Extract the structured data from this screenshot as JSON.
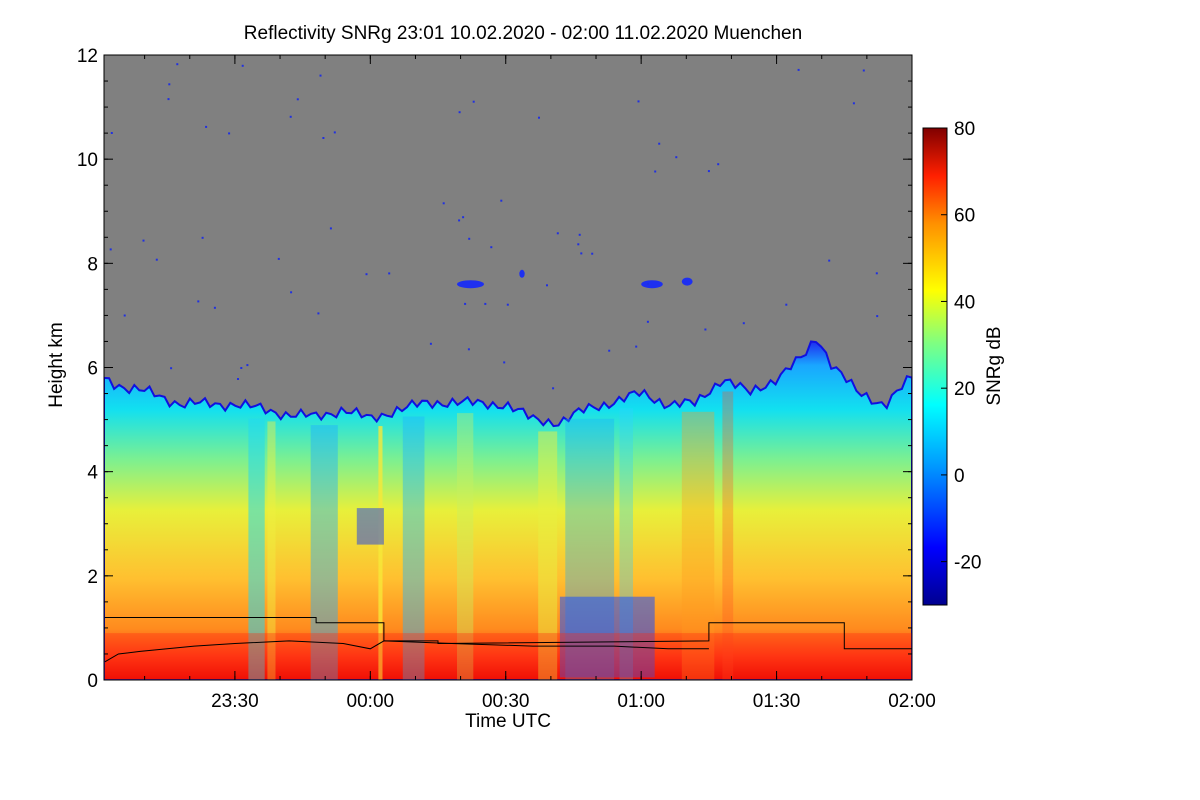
{
  "chart_data": {
    "type": "heatmap",
    "title": "Reflectivity SNRg   23:01 10.02.2020 - 02:00 11.02.2020 Muenchen",
    "xlabel": "Time UTC",
    "ylabel": "Height km",
    "x_ticks": [
      "23:30",
      "00:00",
      "00:30",
      "01:00",
      "01:30",
      "02:00"
    ],
    "y_ticks": [
      "0",
      "2",
      "4",
      "6",
      "8",
      "10",
      "12"
    ],
    "xlim_hours": [
      23.0167,
      26.0
    ],
    "ylim": [
      0,
      12
    ],
    "missing_color": "#808080",
    "colorbar": {
      "label": "SNRg dB",
      "range": [
        -30,
        80
      ],
      "ticks": [
        "-20",
        "0",
        "20",
        "40",
        "60",
        "80"
      ]
    },
    "echo_top_km": [
      [
        23.02,
        5.8
      ],
      [
        23.1,
        5.6
      ],
      [
        23.2,
        5.5
      ],
      [
        23.3,
        5.3
      ],
      [
        23.4,
        5.3
      ],
      [
        23.5,
        5.3
      ],
      [
        23.6,
        5.2
      ],
      [
        23.7,
        5.1
      ],
      [
        23.8,
        5.05
      ],
      [
        23.9,
        5.2
      ],
      [
        24.0,
        5.0
      ],
      [
        24.1,
        5.2
      ],
      [
        24.2,
        5.3
      ],
      [
        24.3,
        5.35
      ],
      [
        24.4,
        5.3
      ],
      [
        24.5,
        5.3
      ],
      [
        24.6,
        5.0
      ],
      [
        24.7,
        4.95
      ],
      [
        24.8,
        5.2
      ],
      [
        24.9,
        5.35
      ],
      [
        25.0,
        5.5
      ],
      [
        25.1,
        5.3
      ],
      [
        25.2,
        5.3
      ],
      [
        25.3,
        5.8
      ],
      [
        25.4,
        5.5
      ],
      [
        25.5,
        5.8
      ],
      [
        25.6,
        6.2
      ],
      [
        25.65,
        6.6
      ],
      [
        25.7,
        6.1
      ],
      [
        25.8,
        5.5
      ],
      [
        25.9,
        5.3
      ],
      [
        26.0,
        5.8
      ]
    ],
    "lines": [
      {
        "points": [
          [
            23.02,
            1.2
          ],
          [
            23.8,
            1.2
          ],
          [
            23.8,
            1.1
          ],
          [
            24.05,
            1.1
          ],
          [
            24.05,
            0.75
          ],
          [
            24.25,
            0.75
          ],
          [
            24.25,
            0.7
          ],
          [
            25.25,
            0.75
          ],
          [
            25.25,
            1.1
          ],
          [
            25.75,
            1.1
          ],
          [
            25.75,
            0.6
          ],
          [
            26.0,
            0.6
          ]
        ]
      },
      {
        "points": [
          [
            23.02,
            0.35
          ],
          [
            23.07,
            0.5
          ],
          [
            23.15,
            0.55
          ],
          [
            23.25,
            0.6
          ],
          [
            23.35,
            0.65
          ],
          [
            23.5,
            0.7
          ],
          [
            23.7,
            0.75
          ],
          [
            23.9,
            0.7
          ],
          [
            24.0,
            0.6
          ],
          [
            24.05,
            0.75
          ],
          [
            24.3,
            0.7
          ],
          [
            24.6,
            0.65
          ],
          [
            24.9,
            0.65
          ],
          [
            25.1,
            0.6
          ],
          [
            25.25,
            0.6
          ]
        ]
      }
    ]
  }
}
